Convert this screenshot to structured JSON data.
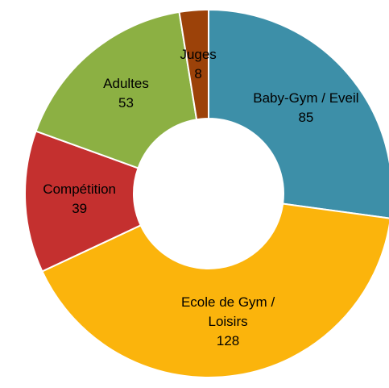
{
  "chart_data": {
    "type": "donut",
    "categories": [
      "Baby-Gym / Eveil",
      "Ecole de Gym / Loisirs",
      "Compétition",
      "Adultes",
      "Juges"
    ],
    "values": [
      85,
      128,
      39,
      53,
      8
    ],
    "colors": [
      "#3d8fa8",
      "#fbb40c",
      "#c4302f",
      "#8cb043",
      "#9c4209"
    ]
  }
}
